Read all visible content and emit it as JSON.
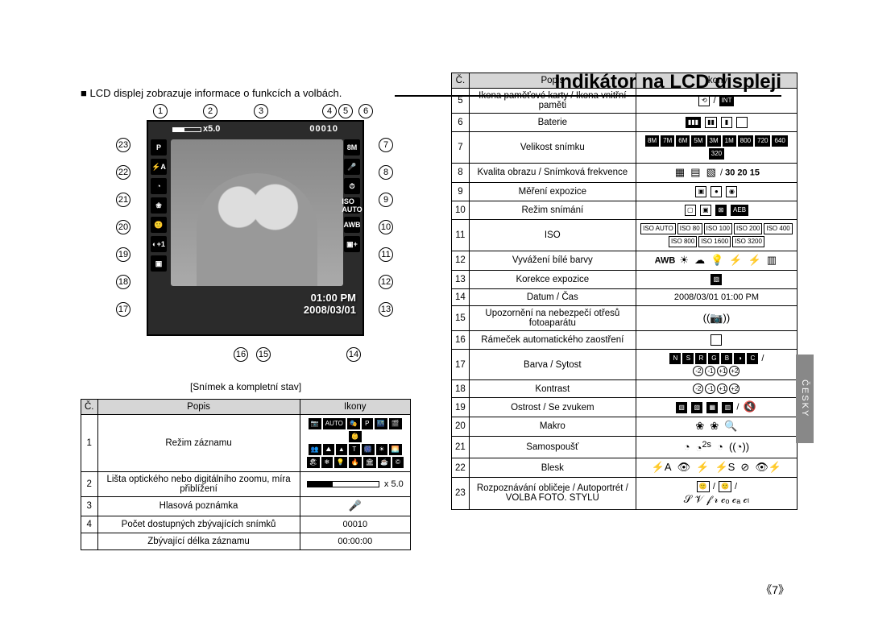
{
  "page": {
    "title": "Indikátor na LCD displeji",
    "intro_bullet": "■",
    "intro": "LCD displej zobrazuje informace o funkcích a volbách.",
    "caption": "[Snímek a kompletní stav]",
    "language_tab": "ČESKY",
    "page_number": "《7》"
  },
  "lcd": {
    "zoom_label": "x5.0",
    "counter": "00010",
    "time": "01:00 PM",
    "date": "2008/03/01",
    "right_icons": [
      "8M",
      "🎤",
      "⏱",
      "ISO\nAUTO",
      "AWB",
      "▣+"
    ],
    "left_icons": [
      "P",
      "⚡A",
      "◔",
      "❀",
      "🙂",
      "◐+1",
      "▣"
    ]
  },
  "callouts_top": [
    "1",
    "2",
    "3",
    "4",
    "5",
    "6"
  ],
  "callouts_right": [
    "7",
    "8",
    "9",
    "10",
    "11",
    "12",
    "13"
  ],
  "callouts_left": [
    "23",
    "22",
    "21",
    "20",
    "19",
    "18",
    "17"
  ],
  "callouts_bottom": [
    "16",
    "15",
    "14"
  ],
  "table_left": {
    "headers": [
      "Č.",
      "Popis",
      "Ikony"
    ],
    "rows": [
      {
        "n": "1",
        "desc": "Režim záznamu",
        "icons": "mode-grid"
      },
      {
        "n": "2",
        "desc": "Lišta optického nebo digitálního zoomu, míra přiblížení",
        "icons": "zoom-bar"
      },
      {
        "n": "3",
        "desc": "Hlasová poznámka",
        "icons": "mic"
      },
      {
        "n": "4",
        "desc": "Počet dostupných zbývajících snímků",
        "icons": "00010"
      },
      {
        "n": "",
        "desc": "Zbývající délka záznamu",
        "icons": "00:00:00"
      }
    ],
    "zoom_text": "x 5.0"
  },
  "table_right": {
    "headers": [
      "Č.",
      "Popis",
      "Ikony"
    ],
    "rows": [
      {
        "n": "5",
        "desc": "Ikona paměťové karty / Ikona vnitřní paměti",
        "icons": "card-int"
      },
      {
        "n": "6",
        "desc": "Baterie",
        "icons": "battery"
      },
      {
        "n": "7",
        "desc": "Velikost snímku",
        "icons": "sizes"
      },
      {
        "n": "8",
        "desc": "Kvalita obrazu / Snímková frekvence",
        "icons": "quality-fps"
      },
      {
        "n": "9",
        "desc": "Měření expozice",
        "icons": "metering"
      },
      {
        "n": "10",
        "desc": "Režim snímání",
        "icons": "drive"
      },
      {
        "n": "11",
        "desc": "ISO",
        "icons": "iso"
      },
      {
        "n": "12",
        "desc": "Vyvážení bílé barvy",
        "icons": "wb"
      },
      {
        "n": "13",
        "desc": "Korekce expozice",
        "icons": "exp-comp"
      },
      {
        "n": "14",
        "desc": "Datum / Čas",
        "icons": "2008/03/01  01:00 PM"
      },
      {
        "n": "15",
        "desc": "Upozornění na nebezpečí otřesů fotoaparátu",
        "icons": "shake"
      },
      {
        "n": "16",
        "desc": "Rámeček automatického zaostření",
        "icons": "af-frame"
      },
      {
        "n": "17",
        "desc": "Barva / Sytost",
        "icons": "color-sat"
      },
      {
        "n": "18",
        "desc": "Kontrast",
        "icons": "contrast"
      },
      {
        "n": "19",
        "desc": "Ostrost / Se zvukem",
        "icons": "sharp-sound"
      },
      {
        "n": "20",
        "desc": "Makro",
        "icons": "macro"
      },
      {
        "n": "21",
        "desc": "Samospoušť",
        "icons": "timer"
      },
      {
        "n": "22",
        "desc": "Blesk",
        "icons": "flash"
      },
      {
        "n": "23",
        "desc": "Rozpoznávání obličeje / Autoportrét / VOLBA FOTO. STYLU",
        "icons": "face-style"
      }
    ]
  },
  "style": {
    "accent": "#000000",
    "header_bg": "#d6d6d6",
    "lcd_bg": "#2b2b2b",
    "tab_bg": "#888888",
    "font_size_body": 12
  }
}
